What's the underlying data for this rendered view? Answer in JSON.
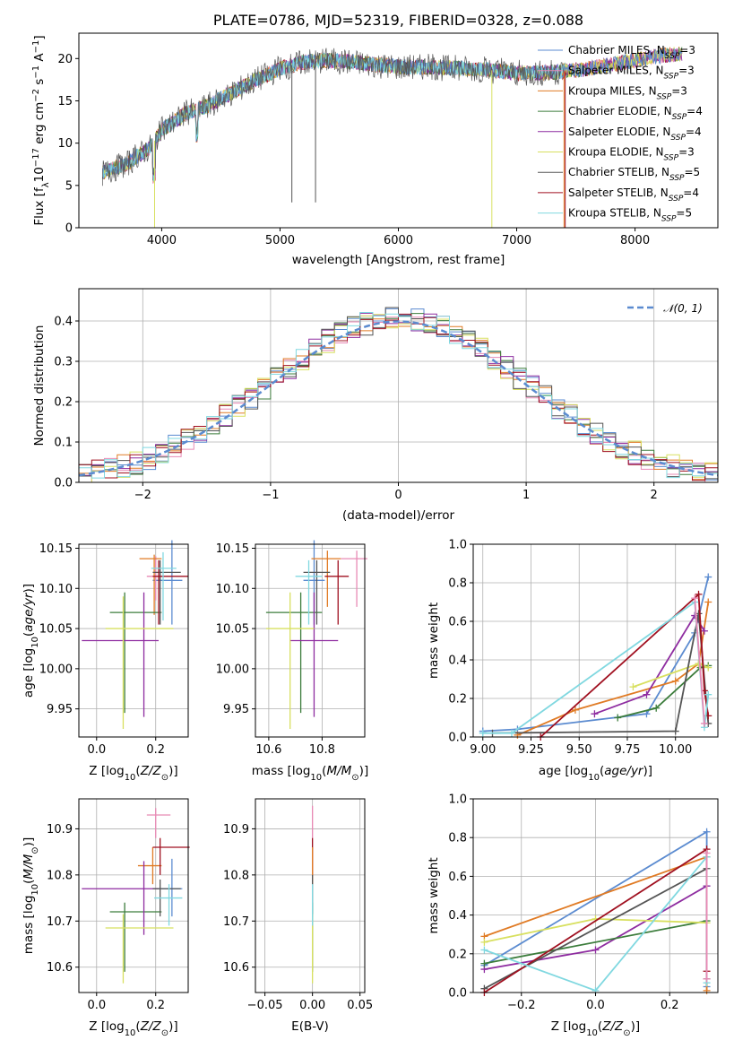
{
  "title": "PLATE=0786, MJD=52319, FIBERID=0328, z=0.088",
  "colors": {
    "Chabrier MILES": "#5b8bd0",
    "Salpeter MILES": "#e88ab5",
    "Kroupa MILES": "#e07b25",
    "Chabrier ELODIE": "#3c7d3c",
    "Salpeter ELODIE": "#8e2ca0",
    "Kroupa ELODIE": "#d8e060",
    "Chabrier STELIB": "#555555",
    "Salpeter STELIB": "#a01020",
    "Kroupa STELIB": "#80d8e0"
  },
  "chart_data": [
    {
      "type": "line",
      "title": "PLATE=0786, MJD=52319, FIBERID=0328, z=0.088",
      "xlabel": "wavelength [Angstrom, rest frame]",
      "ylabel": "Flux [f_λ 10^-17 erg cm^-2 s^-1 A^-1]",
      "xlim": [
        3300,
        8700
      ],
      "ylim": [
        0,
        23
      ],
      "xticks": [
        "4000",
        "5000",
        "6000",
        "7000",
        "8000"
      ],
      "yticks": [
        "0",
        "5",
        "10",
        "15",
        "20"
      ],
      "legend_position": "top-right",
      "legend": [
        {
          "base": "Chabrier MILES, N",
          "sub": "SSP",
          "tail": "=3"
        },
        {
          "base": "Salpeter MILES, N",
          "sub": "SSP",
          "tail": "=3"
        },
        {
          "base": "Kroupa MILES, N",
          "sub": "SSP",
          "tail": "=3"
        },
        {
          "base": "Chabrier ELODIE, N",
          "sub": "SSP",
          "tail": "=4"
        },
        {
          "base": "Salpeter ELODIE, N",
          "sub": "SSP",
          "tail": "=4"
        },
        {
          "base": "Kroupa ELODIE, N",
          "sub": "SSP",
          "tail": "=3"
        },
        {
          "base": "Chabrier STELIB, N",
          "sub": "SSP",
          "tail": "=5"
        },
        {
          "base": "Salpeter STELIB, N",
          "sub": "SSP",
          "tail": "=4"
        },
        {
          "base": "Kroupa STELIB, N",
          "sub": "SSP",
          "tail": "=5"
        }
      ],
      "spectrum_envelope": {
        "x": [
          3500,
          3700,
          3900,
          4000,
          4200,
          4400,
          4600,
          4800,
          5000,
          5200,
          5400,
          5600,
          5800,
          6000,
          6200,
          6400,
          6600,
          6800,
          7000,
          7200,
          7400,
          7600,
          7800,
          8000,
          8200,
          8400
        ],
        "y": [
          6.5,
          7.5,
          9.5,
          11.5,
          13.5,
          14.5,
          16.0,
          17.5,
          18.8,
          19.6,
          19.8,
          19.6,
          19.3,
          19.0,
          19.0,
          18.9,
          18.8,
          18.6,
          18.3,
          18.3,
          18.5,
          18.8,
          19.3,
          19.8,
          20.3,
          20.6
        ]
      }
    },
    {
      "type": "bar",
      "xlabel": "(data-model)/error",
      "ylabel": "Normed distribution",
      "xlim": [
        -2.5,
        2.5
      ],
      "ylim": [
        0,
        0.48
      ],
      "xticks": [
        "−2",
        "−1",
        "0",
        "1",
        "2"
      ],
      "yticks": [
        "0.0",
        "0.1",
        "0.2",
        "0.3",
        "0.4"
      ],
      "legend": [
        "𝒩(0, 1)"
      ],
      "curve": "normal pdf, mean 0, sigma 1",
      "bin_width": 0.1
    },
    {
      "type": "scatter",
      "xlabel": "Z [log10(Z/Z⊙)]",
      "ylabel": "age  [log10(age/yr)]",
      "xlim": [
        -0.06,
        0.31
      ],
      "ylim": [
        9.915,
        10.155
      ],
      "xticks": [
        "0.0",
        "0.2"
      ],
      "yticks": [
        "9.95",
        "10.00",
        "10.05",
        "10.10",
        "10.15"
      ],
      "points": [
        {
          "s": "Chabrier MILES",
          "x": 0.255,
          "y": 10.11,
          "ex": [
            0.065,
            0.035
          ],
          "ey": [
            0.055,
            0.05
          ]
        },
        {
          "s": "Salpeter MILES",
          "x": 0.2,
          "y": 10.115,
          "ex": [
            0.03,
            0.03
          ],
          "ey": [
            0.03,
            0.025
          ]
        },
        {
          "s": "Kroupa MILES",
          "x": 0.195,
          "y": 10.137,
          "ex": [
            0.05,
            0.025
          ],
          "ey": [
            0.07,
            0.005
          ]
        },
        {
          "s": "Chabrier ELODIE",
          "x": 0.095,
          "y": 10.07,
          "ex": [
            0.05,
            0.125
          ],
          "ey": [
            0.125,
            0.025
          ]
        },
        {
          "s": "Salpeter ELODIE",
          "x": 0.16,
          "y": 10.035,
          "ex": [
            0.21,
            0.05
          ],
          "ey": [
            0.095,
            0.06
          ]
        },
        {
          "s": "Kroupa ELODIE",
          "x": 0.09,
          "y": 10.05,
          "ex": [
            0.06,
            0.17
          ],
          "ey": [
            0.125,
            0.04
          ]
        },
        {
          "s": "Chabrier STELIB",
          "x": 0.215,
          "y": 10.12,
          "ex": [
            0.025,
            0.07
          ],
          "ey": [
            0.065,
            0.015
          ]
        },
        {
          "s": "Salpeter STELIB",
          "x": 0.21,
          "y": 10.115,
          "ex": [
            0.02,
            0.1
          ],
          "ey": [
            0.06,
            0.02
          ]
        },
        {
          "s": "Kroupa STELIB",
          "x": 0.225,
          "y": 10.125,
          "ex": [
            0.04,
            0.045
          ],
          "ey": [
            0.065,
            0.02
          ]
        }
      ]
    },
    {
      "type": "scatter",
      "xlabel": "mass [log10(M/M⊙)]",
      "ylabel": "",
      "xlim": [
        10.55,
        10.96
      ],
      "ylim": [
        9.915,
        10.155
      ],
      "xticks": [
        "10.6",
        "10.8"
      ],
      "yticks": [
        "9.95",
        "10.00",
        "10.05",
        "10.10",
        "10.15"
      ],
      "points": [
        {
          "s": "Chabrier MILES",
          "x": 10.77,
          "y": 10.11,
          "ex": [
            0.04,
            0.04
          ],
          "ey": [
            0.055,
            0.05
          ]
        },
        {
          "s": "Salpeter MILES",
          "x": 10.93,
          "y": 10.137,
          "ex": [
            0.06,
            0.04
          ],
          "ey": [
            0.06,
            0.01
          ]
        },
        {
          "s": "Kroupa MILES",
          "x": 10.82,
          "y": 10.137,
          "ex": [
            0.06,
            0.05
          ],
          "ey": [
            0.06,
            0.01
          ]
        },
        {
          "s": "Chabrier ELODIE",
          "x": 10.72,
          "y": 10.07,
          "ex": [
            0.13,
            0.08
          ],
          "ey": [
            0.125,
            0.025
          ]
        },
        {
          "s": "Salpeter ELODIE",
          "x": 10.77,
          "y": 10.035,
          "ex": [
            0.09,
            0.09
          ],
          "ey": [
            0.095,
            0.06
          ]
        },
        {
          "s": "Kroupa ELODIE",
          "x": 10.68,
          "y": 10.05,
          "ex": [
            0.09,
            0.09
          ],
          "ey": [
            0.125,
            0.045
          ]
        },
        {
          "s": "Chabrier STELIB",
          "x": 10.78,
          "y": 10.12,
          "ex": [
            0.05,
            0.05
          ],
          "ey": [
            0.065,
            0.015
          ]
        },
        {
          "s": "Salpeter STELIB",
          "x": 10.86,
          "y": 10.115,
          "ex": [
            0.05,
            0.04
          ],
          "ey": [
            0.06,
            0.02
          ]
        },
        {
          "s": "Kroupa STELIB",
          "x": 10.75,
          "y": 10.115,
          "ex": [
            0.05,
            0.05
          ],
          "ey": [
            0.06,
            0.02
          ]
        }
      ]
    },
    {
      "type": "line",
      "xlabel": "age  [log10(age/yr)]",
      "ylabel": "mass weight",
      "xlim": [
        8.95,
        10.22
      ],
      "ylim": [
        0,
        1.0
      ],
      "xticks": [
        "9.00",
        "9.25",
        "9.50",
        "9.75",
        "10.00"
      ],
      "yticks": [
        "0.0",
        "0.2",
        "0.4",
        "0.6",
        "0.8",
        "1.0"
      ],
      "series": [
        {
          "s": "Chabrier MILES",
          "x": [
            9.0,
            9.18,
            9.85,
            10.1,
            10.17
          ],
          "y": [
            0.03,
            0.04,
            0.12,
            0.54,
            0.83
          ]
        },
        {
          "s": "Kroupa MILES",
          "x": [
            9.18,
            9.48,
            10.0,
            10.12,
            10.17
          ],
          "y": [
            0.01,
            0.14,
            0.29,
            0.38,
            0.7
          ]
        },
        {
          "s": "Salpeter ELODIE",
          "x": [
            9.58,
            9.85,
            10.1,
            10.15
          ],
          "y": [
            0.12,
            0.22,
            0.63,
            0.55
          ]
        },
        {
          "s": "Chabrier ELODIE",
          "x": [
            9.7,
            9.9,
            10.13,
            10.17
          ],
          "y": [
            0.1,
            0.15,
            0.36,
            0.37
          ]
        },
        {
          "s": "Kroupa ELODIE",
          "x": [
            9.78,
            10.12,
            10.17
          ],
          "y": [
            0.26,
            0.38,
            0.36
          ]
        },
        {
          "s": "Chabrier STELIB",
          "x": [
            9.05,
            10.0,
            10.12,
            10.17
          ],
          "y": [
            0.02,
            0.03,
            0.64,
            0.07
          ]
        },
        {
          "s": "Salpeter STELIB",
          "x": [
            9.3,
            10.12,
            10.15,
            10.17
          ],
          "y": [
            0.0,
            0.74,
            0.24,
            0.11
          ]
        },
        {
          "s": "Kroupa STELIB",
          "x": [
            9.0,
            9.15,
            10.1,
            10.15,
            10.17
          ],
          "y": [
            0.02,
            0.02,
            0.7,
            0.05,
            0.22
          ]
        },
        {
          "s": "Salpeter MILES",
          "x": [
            10.1,
            10.15
          ],
          "y": [
            0.72,
            0.07
          ]
        }
      ]
    },
    {
      "type": "scatter",
      "xlabel": "Z [log10(Z/Z⊙)]",
      "ylabel": "mass [log10(M/M⊙)]",
      "xlim": [
        -0.06,
        0.31
      ],
      "ylim": [
        10.545,
        10.965
      ],
      "xticks": [
        "0.0",
        "0.2"
      ],
      "yticks": [
        "10.6",
        "10.7",
        "10.8",
        "10.9"
      ],
      "points": [
        {
          "s": "Chabrier MILES",
          "x": 0.255,
          "y": 10.77,
          "ex": [
            0.065,
            0.035
          ],
          "ey": [
            0.06,
            0.065
          ]
        },
        {
          "s": "Salpeter MILES",
          "x": 0.2,
          "y": 10.93,
          "ex": [
            0.03,
            0.05
          ],
          "ey": [
            0.05,
            0.015
          ]
        },
        {
          "s": "Kroupa MILES",
          "x": 0.19,
          "y": 10.82,
          "ex": [
            0.05,
            0.03
          ],
          "ey": [
            0.04,
            0.04
          ]
        },
        {
          "s": "Chabrier ELODIE",
          "x": 0.095,
          "y": 10.72,
          "ex": [
            0.05,
            0.125
          ],
          "ey": [
            0.13,
            0.02
          ]
        },
        {
          "s": "Salpeter ELODIE",
          "x": 0.16,
          "y": 10.77,
          "ex": [
            0.21,
            0.05
          ],
          "ey": [
            0.1,
            0.06
          ]
        },
        {
          "s": "Kroupa ELODIE",
          "x": 0.09,
          "y": 10.685,
          "ex": [
            0.06,
            0.17
          ],
          "ey": [
            0.12,
            0.03
          ]
        },
        {
          "s": "Chabrier STELIB",
          "x": 0.215,
          "y": 10.77,
          "ex": [
            0.025,
            0.07
          ],
          "ey": [
            0.06,
            0.02
          ]
        },
        {
          "s": "Salpeter STELIB",
          "x": 0.215,
          "y": 10.86,
          "ex": [
            0.025,
            0.1
          ],
          "ey": [
            0.06,
            0.02
          ]
        },
        {
          "s": "Kroupa STELIB",
          "x": 0.245,
          "y": 10.75,
          "ex": [
            0.05,
            0.045
          ],
          "ey": [
            0.06,
            0.03
          ]
        }
      ]
    },
    {
      "type": "scatter",
      "xlabel": "E(B-V)",
      "ylabel": "",
      "xlim": [
        -0.06,
        0.055
      ],
      "ylim": [
        10.545,
        10.965
      ],
      "xticks": [
        "−0.05",
        "0.00",
        "0.05"
      ],
      "yticks": [
        "10.6",
        "10.7",
        "10.8",
        "10.9"
      ],
      "points": [
        {
          "s": "Salpeter MILES",
          "x": 0.0,
          "y": 10.93,
          "ex": [
            0,
            0
          ],
          "ey": [
            0.05,
            0.02
          ]
        },
        {
          "s": "Salpeter STELIB",
          "x": 0.0,
          "y": 10.86,
          "ex": [
            0,
            0
          ],
          "ey": [
            0.06,
            0.02
          ]
        },
        {
          "s": "Kroupa MILES",
          "x": 0.0,
          "y": 10.82,
          "ex": [
            0,
            0
          ],
          "ey": [
            0.04,
            0.04
          ]
        },
        {
          "s": "Chabrier STELIB",
          "x": 0.0,
          "y": 10.77,
          "ex": [
            0,
            0
          ],
          "ey": [
            0.06,
            0.03
          ]
        },
        {
          "s": "Chabrier ELODIE",
          "x": 0.0,
          "y": 10.72,
          "ex": [
            0,
            0
          ],
          "ey": [
            0.13,
            0.02
          ]
        },
        {
          "s": "Kroupa ELODIE",
          "x": 0.0,
          "y": 10.685,
          "ex": [
            0,
            0
          ],
          "ey": [
            0.12,
            0.03
          ]
        },
        {
          "s": "Kroupa STELIB",
          "x": 0.0,
          "y": 10.75,
          "ex": [
            0,
            0
          ],
          "ey": [
            0.06,
            0.03
          ]
        }
      ]
    },
    {
      "type": "line",
      "xlabel": "Z [log10(Z/Z⊙)]",
      "ylabel": "mass weight",
      "xlim": [
        -0.33,
        0.33
      ],
      "ylim": [
        0,
        1.0
      ],
      "xticks": [
        "−0.2",
        "0.0",
        "0.2"
      ],
      "yticks": [
        "0.0",
        "0.2",
        "0.4",
        "0.6",
        "0.8",
        "1.0"
      ],
      "series": [
        {
          "s": "Chabrier MILES",
          "x": [
            -0.3,
            0.3,
            0.3
          ],
          "y": [
            0.14,
            0.83,
            0.03
          ]
        },
        {
          "s": "Kroupa MILES",
          "x": [
            -0.3,
            0.3,
            0.3
          ],
          "y": [
            0.29,
            0.7,
            0.01
          ]
        },
        {
          "s": "Salpeter ELODIE",
          "x": [
            -0.3,
            0.0,
            0.3
          ],
          "y": [
            0.12,
            0.22,
            0.55
          ]
        },
        {
          "s": "Chabrier ELODIE",
          "x": [
            -0.3,
            0.3
          ],
          "y": [
            0.15,
            0.37
          ]
        },
        {
          "s": "Kroupa ELODIE",
          "x": [
            -0.3,
            0.0,
            0.3
          ],
          "y": [
            0.26,
            0.38,
            0.36
          ]
        },
        {
          "s": "Chabrier STELIB",
          "x": [
            -0.3,
            0.3,
            0.3
          ],
          "y": [
            0.02,
            0.64,
            0.07
          ]
        },
        {
          "s": "Salpeter STELIB",
          "x": [
            -0.3,
            0.3,
            0.3
          ],
          "y": [
            0.0,
            0.74,
            0.11
          ]
        },
        {
          "s": "Kroupa STELIB",
          "x": [
            -0.3,
            0.0,
            0.3,
            0.3
          ],
          "y": [
            0.22,
            0.01,
            0.7,
            0.05
          ]
        },
        {
          "s": "Salpeter MILES",
          "x": [
            0.3,
            0.3
          ],
          "y": [
            0.72,
            0.07
          ]
        }
      ]
    }
  ]
}
